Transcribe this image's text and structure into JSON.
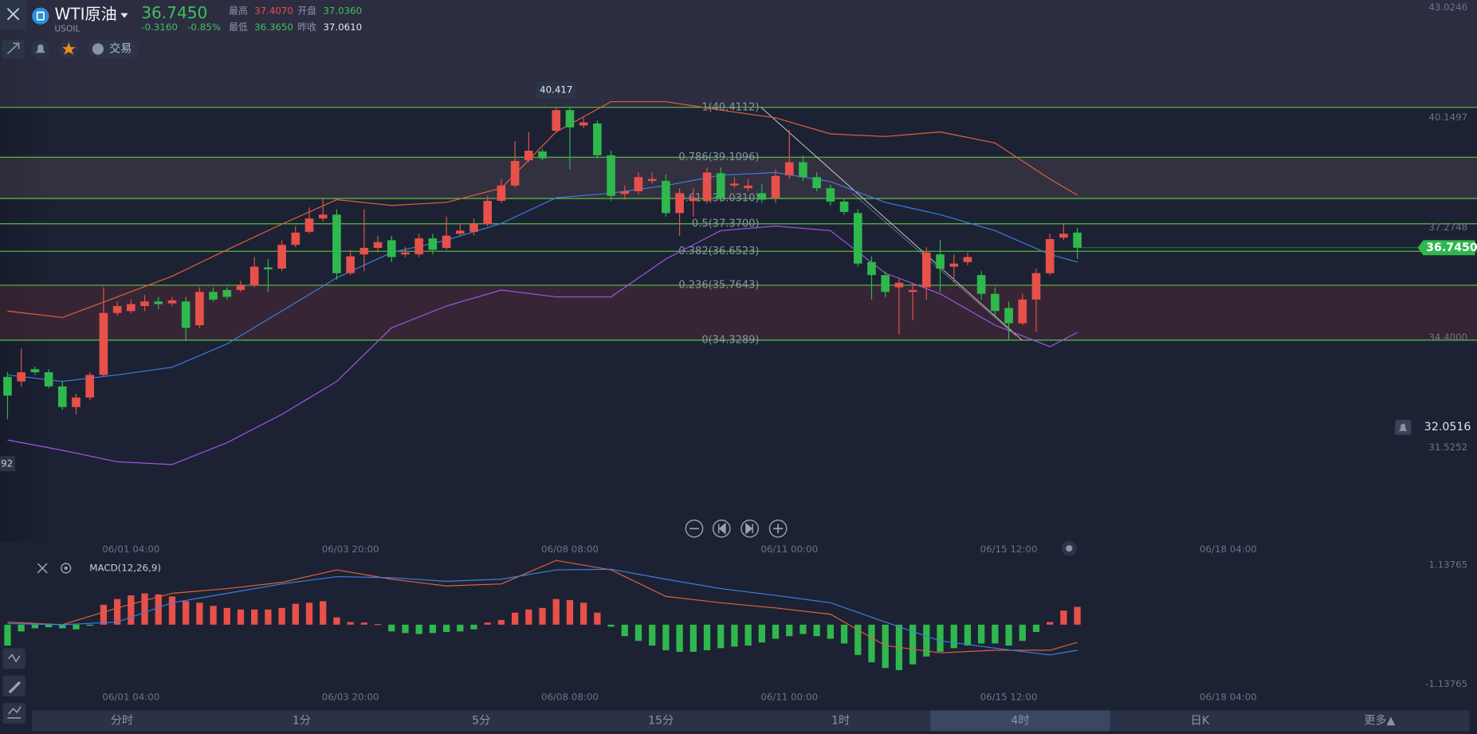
{
  "header": {
    "name": "WTI原油",
    "symbol": "USOIL",
    "change": "-0.3160",
    "change_pct": "-0.85%",
    "stats": [
      {
        "label": "最高",
        "value": "37.4070",
        "color": "#e8504a"
      },
      {
        "label": "开盘",
        "value": "37.0360",
        "color": "#3fc15e"
      },
      {
        "label": "最低",
        "value": "36.3650",
        "color": "#3fc15e"
      },
      {
        "label": "昨收",
        "value": "37.0610",
        "color": "#e6e8ee"
      }
    ],
    "trade": "交易"
  },
  "tabs": {
    "items": [
      "分时",
      "1分",
      "5分",
      "15分",
      "1时",
      "4时",
      "日K",
      "更多▲"
    ],
    "selected": 5
  },
  "chart_data": [
    {
      "type": "candlestick",
      "candles": {
        "x": [
          0,
          1,
          2,
          3,
          4,
          5,
          6,
          7,
          8,
          9,
          10,
          11,
          12,
          13,
          14,
          15,
          16,
          17,
          18,
          19,
          20,
          21,
          22,
          23,
          24,
          25,
          26,
          27,
          28,
          29,
          30,
          31,
          32,
          33,
          34,
          35,
          36,
          37,
          38,
          39,
          40,
          41,
          42,
          43,
          44,
          45,
          46,
          47,
          48,
          49,
          50,
          51,
          52,
          53,
          54,
          55,
          56,
          57,
          58,
          59,
          60,
          61,
          62,
          63,
          64,
          65,
          66,
          67,
          68,
          69,
          70,
          71,
          72,
          73,
          74,
          75,
          76,
          77,
          78
        ],
        "open": [
          33.37,
          33.25,
          33.57,
          33.49,
          33.12,
          32.58,
          32.83,
          33.42,
          35.04,
          35.09,
          35.22,
          35.34,
          35.29,
          35.34,
          34.72,
          35.59,
          35.64,
          35.64,
          35.76,
          36.23,
          36.2,
          36.82,
          37.16,
          37.51,
          37.61,
          36.08,
          36.57,
          36.74,
          36.94,
          36.57,
          36.57,
          36.99,
          36.74,
          37.11,
          37.16,
          37.36,
          37.97,
          38.37,
          39.03,
          39.26,
          39.8,
          40.34,
          39.94,
          39.99,
          39.16,
          38.15,
          38.22,
          38.49,
          38.49,
          37.65,
          37.97,
          37.97,
          38.69,
          38.37,
          38.3,
          38.17,
          38.05,
          38.64,
          38.98,
          38.59,
          38.3,
          37.95,
          37.65,
          36.37,
          36.03,
          35.71,
          35.59,
          35.71,
          36.57,
          36.25,
          36.37,
          36.03,
          35.54,
          35.17,
          34.77,
          35.39,
          36.08,
          37.01,
          37.14
        ],
        "high": [
          33.49,
          34.11,
          33.64,
          33.57,
          33.25,
          32.93,
          33.49,
          35.71,
          35.34,
          35.39,
          35.51,
          35.46,
          35.46,
          35.46,
          35.71,
          35.71,
          35.71,
          35.88,
          36.5,
          36.45,
          36.94,
          37.31,
          37.8,
          38.05,
          37.75,
          36.69,
          37.75,
          37.06,
          37.06,
          36.76,
          37.11,
          37.11,
          37.56,
          37.36,
          37.51,
          38.1,
          38.54,
          39.53,
          39.77,
          39.33,
          40.417,
          40.4,
          40.14,
          40.07,
          39.28,
          38.37,
          38.71,
          38.71,
          38.66,
          38.3,
          38.3,
          38.84,
          38.84,
          38.59,
          38.54,
          38.42,
          38.79,
          39.82,
          39.16,
          38.71,
          38.39,
          38.05,
          37.75,
          36.52,
          36.13,
          35.96,
          35.83,
          36.76,
          36.94,
          36.57,
          36.62,
          36.13,
          35.71,
          35.34,
          35.54,
          36.2,
          37.11,
          37.36,
          37.26
        ],
        "low": [
          32.26,
          33.12,
          33.42,
          33.07,
          32.51,
          32.39,
          32.76,
          33.37,
          34.97,
          35.04,
          35.09,
          35.14,
          35.22,
          34.31,
          34.65,
          35.34,
          35.39,
          35.59,
          35.71,
          35.59,
          36.13,
          36.76,
          37.11,
          37.43,
          35.91,
          36.03,
          36.13,
          36.62,
          36.37,
          36.5,
          36.5,
          36.57,
          36.69,
          37.06,
          37.06,
          37.31,
          37.92,
          38.32,
          38.98,
          39.03,
          39.75,
          38.79,
          39.87,
          39.08,
          37.97,
          38.0,
          38.15,
          38.42,
          37.56,
          37.06,
          37.56,
          37.9,
          37.95,
          38.3,
          38.22,
          37.92,
          37.92,
          38.54,
          38.49,
          38.22,
          37.85,
          37.61,
          36.25,
          35.39,
          35.46,
          34.48,
          34.85,
          35.39,
          35.59,
          35.83,
          36.28,
          35.39,
          34.97,
          34.35,
          34.72,
          34.55,
          36.03,
          36.94,
          36.45
        ],
        "close": [
          32.88,
          33.49,
          33.49,
          33.12,
          32.58,
          32.83,
          33.42,
          35.04,
          35.22,
          35.27,
          35.34,
          35.27,
          35.37,
          34.65,
          35.59,
          35.39,
          35.46,
          35.76,
          36.25,
          36.18,
          36.82,
          37.14,
          37.51,
          37.61,
          36.08,
          36.52,
          36.74,
          36.89,
          36.5,
          36.62,
          36.99,
          36.69,
          37.06,
          37.19,
          37.36,
          37.97,
          38.37,
          39.01,
          39.28,
          39.08,
          40.34,
          39.89,
          40.02,
          39.16,
          38.1,
          38.22,
          38.59,
          38.54,
          37.65,
          38.17,
          38.05,
          38.71,
          38.05,
          38.42,
          38.37,
          38.0,
          38.62,
          38.98,
          38.59,
          38.3,
          37.95,
          37.68,
          36.33,
          36.03,
          35.59,
          35.83,
          35.64,
          36.62,
          36.2,
          36.33,
          36.5,
          35.54,
          35.09,
          34.77,
          35.39,
          36.08,
          36.97,
          37.11,
          36.745
        ]
      },
      "up_color": "#e8504a",
      "down_color": "#2fb84d",
      "bands": {
        "x": [
          0,
          4,
          8,
          12,
          16,
          20,
          24,
          28,
          32,
          36,
          40,
          44,
          48,
          52,
          56,
          60,
          64,
          68,
          72,
          76,
          78
        ],
        "series": [
          {
            "color": "#e0603f",
            "values": [
              35.09,
              34.92,
              35.46,
              36.0,
              36.69,
              37.36,
              38.0,
              37.85,
              37.93,
              38.3,
              39.77,
              40.56,
              40.56,
              40.34,
              40.14,
              39.72,
              39.65,
              39.77,
              39.48,
              38.54,
              38.12
            ]
          },
          {
            "color": "#3e7ee0",
            "values": [
              33.42,
              33.25,
              33.42,
              33.62,
              34.23,
              35.09,
              35.96,
              36.62,
              36.94,
              37.38,
              38.05,
              38.17,
              38.37,
              38.64,
              38.71,
              38.47,
              37.93,
              37.61,
              37.19,
              36.57,
              36.37
            ]
          },
          {
            "color": "#a355e6",
            "values": [
              31.72,
              31.45,
              31.15,
              31.08,
              31.65,
              32.39,
              33.25,
              34.65,
              35.22,
              35.64,
              35.46,
              35.46,
              36.45,
              37.19,
              37.31,
              37.19,
              36.08,
              35.54,
              34.72,
              34.16,
              34.53
            ]
          }
        ]
      },
      "fib": {
        "color": "#62d53f",
        "levels": [
          {
            "label": "1(40.4112)",
            "value": 40.4112
          },
          {
            "label": "0.786(39.1096)",
            "value": 39.1096
          },
          {
            "label": "0.618(38.0310)",
            "value": 38.031
          },
          {
            "label": "0.5(37.3700)",
            "value": 37.37
          },
          {
            "label": "0.382(36.6523)",
            "value": 36.6523
          },
          {
            "label": "0.236(35.7643)",
            "value": 35.7643
          },
          {
            "label": "0(34.3289)",
            "value": 34.3289
          }
        ]
      },
      "xlim": [
        -0.55,
        107.14
      ],
      "ylim": [
        29.06,
        43.218
      ],
      "yticks": [
        43.0246,
        40.1497,
        37.2748,
        {
          "value": 34.4,
          "label": "34.4000"
        },
        31.5252
      ],
      "xticks": [
        {
          "value": 9,
          "label": "06/01 04:00"
        },
        {
          "value": 25,
          "label": "06/03 20:00"
        },
        {
          "value": 41,
          "label": "06/08 08:00"
        },
        {
          "value": 57,
          "label": "06/11 00:00"
        },
        {
          "value": 73,
          "label": "06/15 12:00"
        },
        {
          "value": 89,
          "label": "06/18 04:00"
        }
      ],
      "grid": false,
      "last_price": {
        "value": 36.745,
        "label": "36.7450",
        "color": "#2fb84d"
      },
      "peak": {
        "x": 40,
        "value": 40.417,
        "label": "40.417"
      },
      "alert": {
        "value": 32.0516,
        "label": "32.0516"
      },
      "cursor": {
        "value": 31.1,
        "label": "92"
      }
    },
    {
      "type": "macd",
      "title": "MACD(12,26,9)",
      "x": [
        0,
        1,
        2,
        3,
        4,
        5,
        6,
        7,
        8,
        9,
        10,
        11,
        12,
        13,
        14,
        15,
        16,
        17,
        18,
        19,
        20,
        21,
        22,
        23,
        24,
        25,
        26,
        27,
        28,
        29,
        30,
        31,
        32,
        33,
        34,
        35,
        36,
        37,
        38,
        39,
        40,
        41,
        42,
        43,
        44,
        45,
        46,
        47,
        48,
        49,
        50,
        51,
        52,
        53,
        54,
        55,
        56,
        57,
        58,
        59,
        60,
        61,
        62,
        63,
        64,
        65,
        66,
        67,
        68,
        69,
        70,
        71,
        72,
        73,
        74,
        75,
        76,
        77,
        78
      ],
      "histogram": [
        -0.4,
        -0.13,
        -0.07,
        -0.05,
        -0.07,
        -0.09,
        -0.02,
        0.38,
        0.49,
        0.56,
        0.6,
        0.58,
        0.54,
        0.45,
        0.42,
        0.36,
        0.32,
        0.29,
        0.29,
        0.29,
        0.32,
        0.4,
        0.42,
        0.45,
        0.14,
        0.05,
        0.04,
        0.01,
        -0.13,
        -0.16,
        -0.18,
        -0.16,
        -0.14,
        -0.13,
        -0.09,
        0.04,
        0.09,
        0.23,
        0.29,
        0.32,
        0.49,
        0.47,
        0.42,
        0.23,
        -0.04,
        -0.22,
        -0.31,
        -0.4,
        -0.49,
        -0.52,
        -0.52,
        -0.49,
        -0.45,
        -0.42,
        -0.4,
        -0.34,
        -0.27,
        -0.22,
        -0.18,
        -0.22,
        -0.27,
        -0.36,
        -0.58,
        -0.72,
        -0.83,
        -0.87,
        -0.76,
        -0.61,
        -0.52,
        -0.45,
        -0.4,
        -0.36,
        -0.36,
        -0.4,
        -0.31,
        -0.14,
        0.05,
        0.27,
        0.34
      ],
      "up_color": "#e8504a",
      "down_color": "#2fb84d",
      "lines": {
        "x": [
          0,
          4,
          8,
          12,
          16,
          20,
          24,
          28,
          32,
          36,
          40,
          44,
          48,
          52,
          56,
          60,
          64,
          68,
          72,
          76,
          78
        ],
        "series": [
          {
            "color": "#e0603f",
            "values": [
              0.05,
              0,
              0.32,
              0.6,
              0.69,
              0.81,
              1.05,
              0.87,
              0.74,
              0.78,
              1.23,
              1.05,
              0.54,
              0.42,
              0.32,
              0.2,
              -0.4,
              -0.54,
              -0.49,
              -0.49,
              -0.34
            ]
          },
          {
            "color": "#3e7ee0",
            "values": [
              0.02,
              0,
              0.05,
              0.42,
              0.6,
              0.78,
              0.92,
              0.9,
              0.83,
              0.87,
              1.05,
              1.06,
              0.87,
              0.69,
              0.56,
              0.42,
              0.05,
              -0.31,
              -0.45,
              -0.58,
              -0.49
            ]
          }
        ]
      },
      "xlim": [
        -0.55,
        107.14
      ],
      "ylim": [
        -1.48,
        1.28
      ],
      "yticks": [
        1.13765,
        -1.13765
      ],
      "xticks": [
        {
          "value": 9,
          "label": "06/01 04:00"
        },
        {
          "value": 25,
          "label": "06/03 20:00"
        },
        {
          "value": 41,
          "label": "06/08 08:00"
        },
        {
          "value": 57,
          "label": "06/11 00:00"
        },
        {
          "value": 73,
          "label": "06/15 12:00"
        },
        {
          "value": 89,
          "label": "06/18 04:00"
        }
      ]
    }
  ]
}
